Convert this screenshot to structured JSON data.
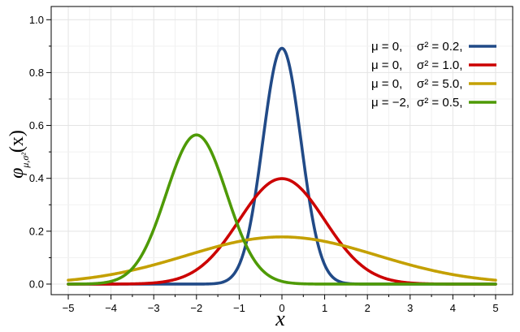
{
  "chart_data": {
    "type": "line",
    "title": "",
    "xlabel": "x",
    "ylabel_symbol": "φ",
    "ylabel_subscript": "μ,σ²",
    "ylabel_argument": "(x)",
    "xlim": [
      -5.4,
      5.4
    ],
    "ylim": [
      -0.04,
      1.05
    ],
    "xticks": [
      -5,
      -4,
      -3,
      -2,
      -1,
      0,
      1,
      2,
      3,
      4,
      5
    ],
    "xtick_labels": [
      "−5",
      "−4",
      "−3",
      "−2",
      "−1",
      "0",
      "1",
      "2",
      "3",
      "4",
      "5"
    ],
    "yticks": [
      0.0,
      0.2,
      0.4,
      0.6,
      0.8,
      1.0
    ],
    "ytick_labels": [
      "0.0",
      "0.2",
      "0.4",
      "0.6",
      "0.8",
      "1.0"
    ],
    "x_domain": [
      -5,
      5
    ],
    "grid": true,
    "legend_position": "top-right",
    "series": [
      {
        "label_mu": "μ = 0,",
        "label_sigma": "σ² = 0.2,",
        "mu": 0,
        "variance": 0.2,
        "color": "#214a87"
      },
      {
        "label_mu": "μ = 0,",
        "label_sigma": "σ² = 1.0,",
        "mu": 0,
        "variance": 1.0,
        "color": "#cc0000"
      },
      {
        "label_mu": "μ = 0,",
        "label_sigma": "σ² = 5.0,",
        "mu": 0,
        "variance": 5.0,
        "color": "#c4a000"
      },
      {
        "label_mu": "μ = −2,",
        "label_sigma": "σ² = 0.5,",
        "mu": -2,
        "variance": 0.5,
        "color": "#4e9a06"
      }
    ]
  }
}
